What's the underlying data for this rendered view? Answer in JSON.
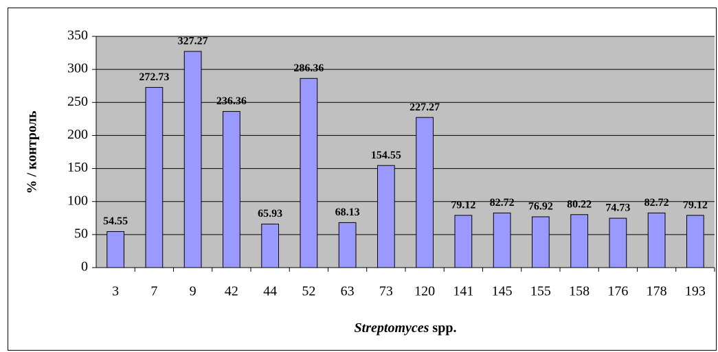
{
  "chart_data": {
    "type": "bar",
    "y_label": "% / контроль",
    "x_label": [
      "Streptomyces",
      "spp."
    ],
    "categories": [
      "3",
      "7",
      "9",
      "42",
      "44",
      "52",
      "63",
      "73",
      "120",
      "141",
      "145",
      "155",
      "158",
      "176",
      "178",
      "193"
    ],
    "values": [
      54.55,
      272.73,
      327.27,
      236.36,
      65.93,
      286.36,
      68.13,
      154.55,
      227.27,
      79.12,
      82.72,
      76.92,
      80.22,
      74.73,
      82.72,
      79.12
    ],
    "color": "#9999ff",
    "plot_background": "#c0c0c0",
    "ylim": [
      0,
      350
    ],
    "yticks": [
      0,
      50,
      100,
      150,
      200,
      250,
      300,
      350
    ],
    "grid": true
  }
}
